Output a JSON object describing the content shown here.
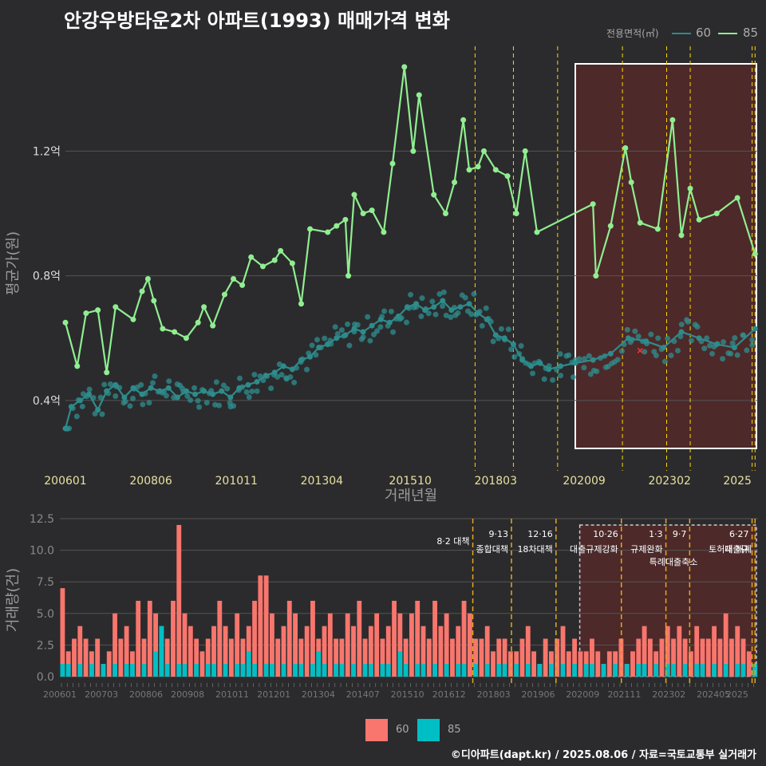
{
  "title": "안강우방타운2차 아파트(1993) 매매가격 변화",
  "legend_title": "전용면적(㎡)",
  "series_names": [
    "60",
    "85"
  ],
  "colors": {
    "background": "#2b2b2d",
    "s60_line": "#2e8b8b",
    "s85_line": "#90ee90",
    "bar60": "#f8766d",
    "bar85": "#00bfc4",
    "policy_line": "#ffd700",
    "highlight_fill": "#5a2a2a",
    "grid": "#555555",
    "tick_text": "#dddddd",
    "axis_title": "#9a9a9a"
  },
  "footer": "©디아파트(dapt.kr) / 2025.08.06 / 자료=국토교통부 실거래가",
  "chart_data": [
    {
      "type": "line",
      "xlabel": "거래년월",
      "ylabel": "평균가(원)",
      "x_tick_labels": [
        "200601",
        "200806",
        "201011",
        "201304",
        "201510",
        "201803",
        "202009",
        "202302",
        "2025"
      ],
      "y_tick_labels": [
        "0.4억",
        "0.8억",
        "1.2억"
      ],
      "y_ticks": [
        0.4,
        0.8,
        1.2
      ],
      "ylim": [
        0.2,
        1.48
      ],
      "xlim": [
        "2006-01",
        "2025-08"
      ],
      "highlight_range": [
        "2020-06",
        "2025-08"
      ],
      "policy_dates": [
        "2017-08",
        "2018-09",
        "2019-12",
        "2021-10",
        "2023-01",
        "2023-09",
        "2025-06",
        "2025-07"
      ],
      "marker": {
        "x": "2022-04",
        "y": 0.56,
        "symbol": "x"
      },
      "series": [
        {
          "name": "60",
          "values": [
            [
              "2006-01",
              0.31
            ],
            [
              "2006-03",
              0.38
            ],
            [
              "2006-06",
              0.4
            ],
            [
              "2006-09",
              0.42
            ],
            [
              "2006-12",
              0.37
            ],
            [
              "2007-03",
              0.43
            ],
            [
              "2007-06",
              0.45
            ],
            [
              "2007-09",
              0.41
            ],
            [
              "2007-12",
              0.44
            ],
            [
              "2008-03",
              0.42
            ],
            [
              "2008-06",
              0.44
            ],
            [
              "2008-09",
              0.43
            ],
            [
              "2008-12",
              0.44
            ],
            [
              "2009-03",
              0.41
            ],
            [
              "2009-06",
              0.43
            ],
            [
              "2009-09",
              0.42
            ],
            [
              "2009-12",
              0.43
            ],
            [
              "2010-03",
              0.42
            ],
            [
              "2010-06",
              0.43
            ],
            [
              "2010-09",
              0.41
            ],
            [
              "2010-12",
              0.44
            ],
            [
              "2011-03",
              0.45
            ],
            [
              "2011-06",
              0.46
            ],
            [
              "2011-09",
              0.48
            ],
            [
              "2011-12",
              0.49
            ],
            [
              "2012-03",
              0.51
            ],
            [
              "2012-06",
              0.5
            ],
            [
              "2012-09",
              0.53
            ],
            [
              "2012-12",
              0.54
            ],
            [
              "2013-03",
              0.57
            ],
            [
              "2013-06",
              0.58
            ],
            [
              "2013-09",
              0.6
            ],
            [
              "2013-12",
              0.61
            ],
            [
              "2014-03",
              0.63
            ],
            [
              "2014-06",
              0.62
            ],
            [
              "2014-09",
              0.64
            ],
            [
              "2014-12",
              0.66
            ],
            [
              "2015-03",
              0.65
            ],
            [
              "2015-06",
              0.67
            ],
            [
              "2015-09",
              0.7
            ],
            [
              "2015-12",
              0.71
            ],
            [
              "2016-03",
              0.69
            ],
            [
              "2016-06",
              0.7
            ],
            [
              "2016-09",
              0.72
            ],
            [
              "2016-12",
              0.69
            ],
            [
              "2017-03",
              0.7
            ],
            [
              "2017-06",
              0.71
            ],
            [
              "2017-09",
              0.68
            ],
            [
              "2017-12",
              0.66
            ],
            [
              "2018-03",
              0.61
            ],
            [
              "2018-06",
              0.6
            ],
            [
              "2018-09",
              0.58
            ],
            [
              "2018-12",
              0.53
            ],
            [
              "2019-03",
              0.51
            ],
            [
              "2019-06",
              0.52
            ],
            [
              "2019-09",
              0.5
            ],
            [
              "2020-01",
              0.51
            ],
            [
              "2020-06",
              0.52
            ],
            [
              "2020-12",
              0.53
            ],
            [
              "2021-06",
              0.55
            ],
            [
              "2021-12",
              0.6
            ],
            [
              "2022-06",
              0.59
            ],
            [
              "2022-12",
              0.57
            ],
            [
              "2023-06",
              0.62
            ],
            [
              "2023-12",
              0.6
            ],
            [
              "2024-06",
              0.58
            ],
            [
              "2024-12",
              0.57
            ],
            [
              "2025-07",
              0.63
            ]
          ]
        },
        {
          "name": "85",
          "values": [
            [
              "2006-01",
              0.65
            ],
            [
              "2006-05",
              0.51
            ],
            [
              "2006-08",
              0.68
            ],
            [
              "2006-12",
              0.69
            ],
            [
              "2007-03",
              0.49
            ],
            [
              "2007-06",
              0.7
            ],
            [
              "2007-12",
              0.66
            ],
            [
              "2008-03",
              0.75
            ],
            [
              "2008-05",
              0.79
            ],
            [
              "2008-07",
              0.72
            ],
            [
              "2008-10",
              0.63
            ],
            [
              "2009-02",
              0.62
            ],
            [
              "2009-06",
              0.6
            ],
            [
              "2009-10",
              0.65
            ],
            [
              "2009-12",
              0.7
            ],
            [
              "2010-03",
              0.64
            ],
            [
              "2010-07",
              0.74
            ],
            [
              "2010-10",
              0.79
            ],
            [
              "2011-01",
              0.77
            ],
            [
              "2011-04",
              0.86
            ],
            [
              "2011-08",
              0.83
            ],
            [
              "2011-12",
              0.85
            ],
            [
              "2012-02",
              0.88
            ],
            [
              "2012-06",
              0.84
            ],
            [
              "2012-09",
              0.71
            ],
            [
              "2012-12",
              0.95
            ],
            [
              "2013-06",
              0.94
            ],
            [
              "2013-09",
              0.96
            ],
            [
              "2013-12",
              0.98
            ],
            [
              "2014-01",
              0.8
            ],
            [
              "2014-03",
              1.06
            ],
            [
              "2014-06",
              1.0
            ],
            [
              "2014-09",
              1.01
            ],
            [
              "2015-01",
              0.94
            ],
            [
              "2015-04",
              1.16
            ],
            [
              "2015-08",
              1.47
            ],
            [
              "2015-11",
              1.2
            ],
            [
              "2016-01",
              1.38
            ],
            [
              "2016-06",
              1.06
            ],
            [
              "2016-10",
              1.0
            ],
            [
              "2017-01",
              1.1
            ],
            [
              "2017-04",
              1.3
            ],
            [
              "2017-06",
              1.14
            ],
            [
              "2017-09",
              1.15
            ],
            [
              "2017-11",
              1.2
            ],
            [
              "2018-03",
              1.14
            ],
            [
              "2018-07",
              1.12
            ],
            [
              "2018-10",
              1.0
            ],
            [
              "2019-01",
              1.2
            ],
            [
              "2019-05",
              0.94
            ],
            [
              "2020-12",
              1.03
            ],
            [
              "2021-01",
              0.8
            ],
            [
              "2021-06",
              0.96
            ],
            [
              "2021-11",
              1.21
            ],
            [
              "2022-01",
              1.1
            ],
            [
              "2022-04",
              0.97
            ],
            [
              "2022-10",
              0.95
            ],
            [
              "2023-03",
              1.3
            ],
            [
              "2023-06",
              0.93
            ],
            [
              "2023-09",
              1.08
            ],
            [
              "2023-12",
              0.98
            ],
            [
              "2024-06",
              1.0
            ],
            [
              "2025-01",
              1.05
            ],
            [
              "2025-07",
              0.87
            ]
          ]
        }
      ]
    },
    {
      "type": "bar",
      "ylabel": "거래량(건)",
      "y_tick_labels": [
        "0.0",
        "2.5",
        "5.0",
        "7.5",
        "10.0",
        "12.5"
      ],
      "y_ticks": [
        0,
        2.5,
        5,
        7.5,
        10,
        12.5
      ],
      "ylim": [
        0,
        12.5
      ],
      "x_tick_labels": [
        "200601",
        "200703",
        "200806",
        "200908",
        "201011",
        "201201",
        "201304",
        "201407",
        "201510",
        "201612",
        "201803",
        "201906",
        "202009",
        "202111",
        "202302",
        "202405",
        "2025"
      ],
      "policy_labels": [
        {
          "date": "2017-08",
          "date_label": "8·2 대책",
          "name": ""
        },
        {
          "date": "2018-09",
          "date_label": "9·13",
          "name": "종합대책"
        },
        {
          "date": "2019-12",
          "date_label": "12·16",
          "name": "18차대책"
        },
        {
          "date": "2021-10",
          "date_label": "10·26",
          "name": "대출규제강화"
        },
        {
          "date": "2023-01",
          "date_label": "1·3",
          "name": "규제완화"
        },
        {
          "date": "2023-09",
          "date_label": "9·7",
          "name": "특례대출축소"
        },
        {
          "date": "2025-06",
          "date_label": "6·27",
          "name": "대출규"
        },
        {
          "date": "2025-07",
          "date_label": "",
          "name": "토허제 해제"
        }
      ],
      "series": [
        {
          "name": "60",
          "values": [
            7,
            2,
            3,
            4,
            3,
            2,
            3,
            1,
            2,
            5,
            3,
            4,
            2,
            6,
            3,
            6,
            5,
            4,
            3,
            6,
            12,
            5,
            4,
            3,
            2,
            3,
            4,
            6,
            4,
            3,
            5,
            3,
            4,
            6,
            8,
            8,
            5,
            3,
            4,
            6,
            5,
            3,
            4,
            6,
            3,
            4,
            5,
            3,
            3,
            5,
            4,
            6,
            3,
            4,
            5,
            3,
            4,
            6,
            5,
            3,
            5,
            6,
            4,
            3,
            6,
            4,
            5,
            3,
            4,
            6,
            5,
            3,
            3,
            4,
            2,
            3,
            3,
            2,
            2,
            3,
            4,
            2,
            1,
            3,
            2,
            3,
            4,
            2,
            3,
            2,
            2,
            3,
            2,
            1,
            2,
            2,
            3,
            1,
            2,
            3,
            4,
            3,
            2,
            3,
            4,
            3,
            4,
            3,
            2,
            4,
            3,
            3,
            4,
            3,
            5,
            3,
            4,
            3,
            2,
            1
          ]
        },
        {
          "name": "85",
          "values": [
            1,
            1,
            0,
            1,
            0,
            1,
            0,
            1,
            0,
            1,
            0,
            1,
            1,
            0,
            1,
            0,
            2,
            4,
            1,
            0,
            1,
            1,
            0,
            1,
            0,
            1,
            1,
            0,
            1,
            0,
            1,
            1,
            2,
            1,
            0,
            1,
            1,
            0,
            1,
            0,
            1,
            1,
            0,
            1,
            2,
            1,
            0,
            1,
            1,
            0,
            1,
            0,
            1,
            1,
            0,
            1,
            1,
            0,
            2,
            1,
            0,
            1,
            1,
            0,
            1,
            0,
            1,
            0,
            1,
            1,
            0,
            1,
            0,
            1,
            0,
            1,
            1,
            0,
            1,
            0,
            1,
            0,
            1,
            0,
            1,
            0,
            1,
            0,
            1,
            0,
            1,
            1,
            0,
            1,
            0,
            1,
            0,
            1,
            0,
            1,
            1,
            0,
            1,
            0,
            1,
            1,
            0,
            1,
            0,
            1,
            1,
            0,
            1,
            0,
            1,
            0,
            1,
            1,
            0,
            1
          ]
        }
      ]
    }
  ]
}
